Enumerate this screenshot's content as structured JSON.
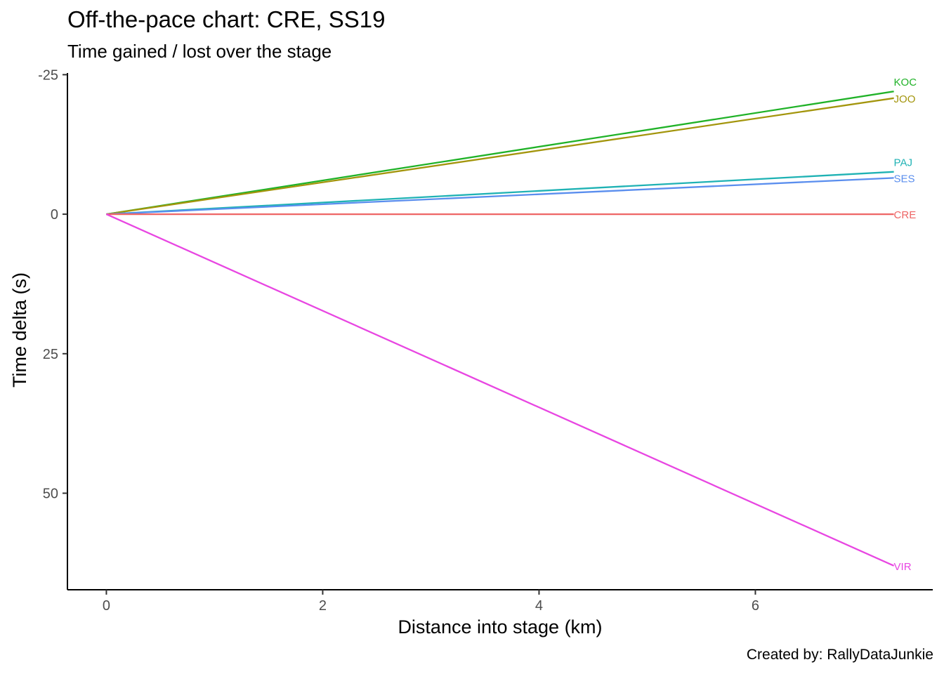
{
  "title": "Off-the-pace chart: CRE, SS19",
  "subtitle": "Time gained / lost over the stage",
  "caption": "Created by: RallyDataJunkie",
  "chart_data": {
    "type": "line",
    "title": "Off-the-pace chart: CRE, SS19",
    "subtitle": "Time gained / lost over the stage",
    "xlabel": "Distance into stage (km)",
    "ylabel": "Time delta (s)",
    "xlim": [
      -0.36,
      7.64
    ],
    "ylim": [
      -25.3,
      67.3
    ],
    "y_reversed": true,
    "x_ticks": [
      0,
      2,
      4,
      6
    ],
    "x_tick_labels": [
      "0",
      "2",
      "4",
      "6"
    ],
    "y_ticks": [
      -25,
      0,
      25,
      50
    ],
    "y_tick_labels": [
      "-25",
      "0",
      "25",
      "50"
    ],
    "grid": false,
    "legend": "none (direct end labels)",
    "series": [
      {
        "name": "KOC",
        "color": "#20B228",
        "x": [
          0,
          7.28
        ],
        "y": [
          0,
          -22.0
        ]
      },
      {
        "name": "JOO",
        "color": "#A3950C",
        "x": [
          0,
          7.28
        ],
        "y": [
          0,
          -20.8
        ]
      },
      {
        "name": "PAJ",
        "color": "#1FB2B4",
        "x": [
          0,
          7.28
        ],
        "y": [
          0,
          -7.6
        ]
      },
      {
        "name": "SES",
        "color": "#5A8EEE",
        "x": [
          0,
          7.28
        ],
        "y": [
          0,
          -6.5
        ]
      },
      {
        "name": "CRE",
        "color": "#EE6565",
        "x": [
          0,
          7.28
        ],
        "y": [
          0,
          0
        ]
      },
      {
        "name": "VIR",
        "color": "#E846E2",
        "x": [
          0,
          7.28
        ],
        "y": [
          0,
          63.0
        ]
      }
    ]
  }
}
